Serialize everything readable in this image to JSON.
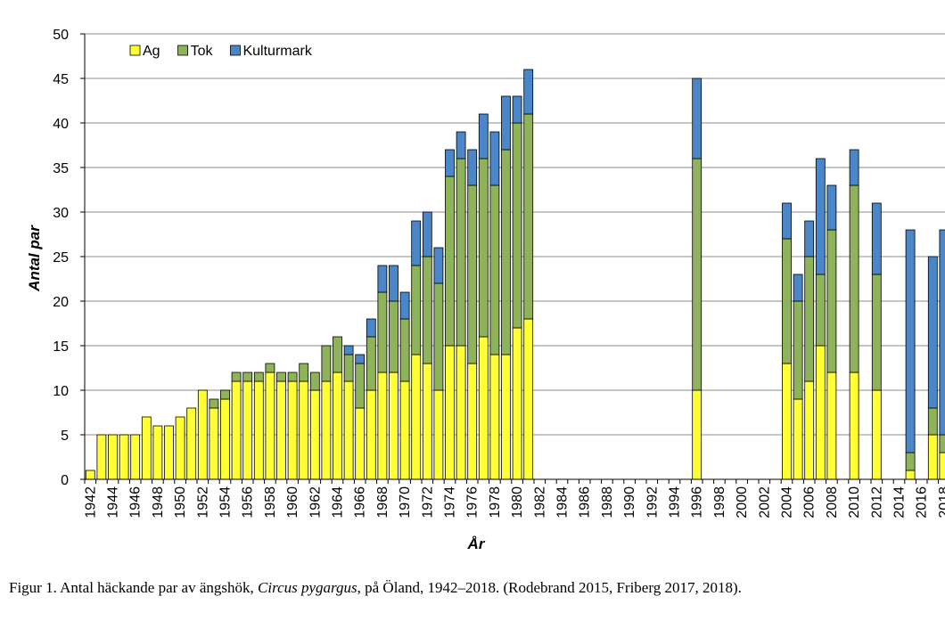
{
  "chart_data": {
    "type": "bar",
    "stacked": true,
    "xlabel": "År",
    "ylabel": "Antal par",
    "ylim": [
      0,
      50
    ],
    "yticks": [
      0,
      5,
      10,
      15,
      20,
      25,
      30,
      35,
      40,
      45,
      50
    ],
    "grid": true,
    "legend_position": "top-left",
    "colors": {
      "Ag": "#ffff33",
      "Tok": "#8fb35a",
      "Kulturmark": "#4a86c8"
    },
    "tick_label_years": [
      1942,
      1944,
      1946,
      1948,
      1950,
      1952,
      1954,
      1956,
      1958,
      1960,
      1962,
      1964,
      1966,
      1968,
      1970,
      1972,
      1974,
      1976,
      1978,
      1980,
      1982,
      1984,
      1986,
      1988,
      1990,
      1992,
      1994,
      1996,
      1998,
      2000,
      2002,
      2004,
      2006,
      2008,
      2010,
      2012,
      2014,
      2016,
      2018
    ],
    "categories": [
      1942,
      1943,
      1944,
      1945,
      1946,
      1947,
      1948,
      1949,
      1950,
      1951,
      1952,
      1953,
      1954,
      1955,
      1956,
      1957,
      1958,
      1959,
      1960,
      1961,
      1962,
      1963,
      1964,
      1965,
      1966,
      1967,
      1968,
      1969,
      1970,
      1971,
      1972,
      1973,
      1974,
      1975,
      1976,
      1977,
      1978,
      1979,
      1980,
      1981,
      1982,
      1983,
      1984,
      1985,
      1986,
      1987,
      1988,
      1989,
      1990,
      1991,
      1992,
      1993,
      1994,
      1995,
      1996,
      1997,
      1998,
      1999,
      2000,
      2001,
      2002,
      2003,
      2004,
      2005,
      2006,
      2007,
      2008,
      2009,
      2010,
      2011,
      2012,
      2013,
      2014,
      2015,
      2016,
      2017,
      2018
    ],
    "series": [
      {
        "name": "Ag",
        "values": [
          1,
          5,
          5,
          5,
          5,
          7,
          6,
          6,
          7,
          8,
          10,
          8,
          9,
          11,
          11,
          11,
          12,
          11,
          11,
          11,
          10,
          11,
          12,
          11,
          8,
          10,
          12,
          12,
          11,
          14,
          13,
          10,
          15,
          15,
          13,
          16,
          14,
          14,
          17,
          18,
          0,
          0,
          0,
          0,
          0,
          0,
          0,
          0,
          0,
          0,
          0,
          0,
          0,
          0,
          10,
          0,
          0,
          0,
          0,
          0,
          0,
          0,
          13,
          9,
          11,
          15,
          12,
          0,
          12,
          0,
          10,
          0,
          0,
          1,
          0,
          5,
          3
        ]
      },
      {
        "name": "Tok",
        "values": [
          0,
          0,
          0,
          0,
          0,
          0,
          0,
          0,
          0,
          0,
          0,
          1,
          1,
          1,
          1,
          1,
          1,
          1,
          1,
          2,
          2,
          4,
          4,
          3,
          5,
          6,
          9,
          8,
          7,
          10,
          12,
          12,
          19,
          21,
          20,
          20,
          19,
          23,
          23,
          23,
          0,
          0,
          0,
          0,
          0,
          0,
          0,
          0,
          0,
          0,
          0,
          0,
          0,
          0,
          26,
          0,
          0,
          0,
          0,
          0,
          0,
          0,
          14,
          11,
          14,
          8,
          16,
          0,
          21,
          0,
          13,
          0,
          0,
          2,
          0,
          3,
          2
        ]
      },
      {
        "name": "Kulturmark",
        "values": [
          0,
          0,
          0,
          0,
          0,
          0,
          0,
          0,
          0,
          0,
          0,
          0,
          0,
          0,
          0,
          0,
          0,
          0,
          0,
          0,
          0,
          0,
          0,
          1,
          1,
          2,
          3,
          4,
          3,
          5,
          5,
          4,
          3,
          3,
          4,
          5,
          6,
          6,
          3,
          5,
          0,
          0,
          0,
          0,
          0,
          0,
          0,
          0,
          0,
          0,
          0,
          0,
          0,
          0,
          9,
          0,
          0,
          0,
          0,
          0,
          0,
          0,
          4,
          3,
          4,
          13,
          5,
          0,
          4,
          0,
          8,
          0,
          0,
          25,
          0,
          17,
          23
        ]
      }
    ]
  },
  "caption": {
    "before": "Figur 1. Antal häckande par av ängshök, ",
    "species": "Circus pygargus",
    "after": ", på Öland, 1942–2018. (Rodebrand 2015, Friberg 2017, 2018)."
  }
}
